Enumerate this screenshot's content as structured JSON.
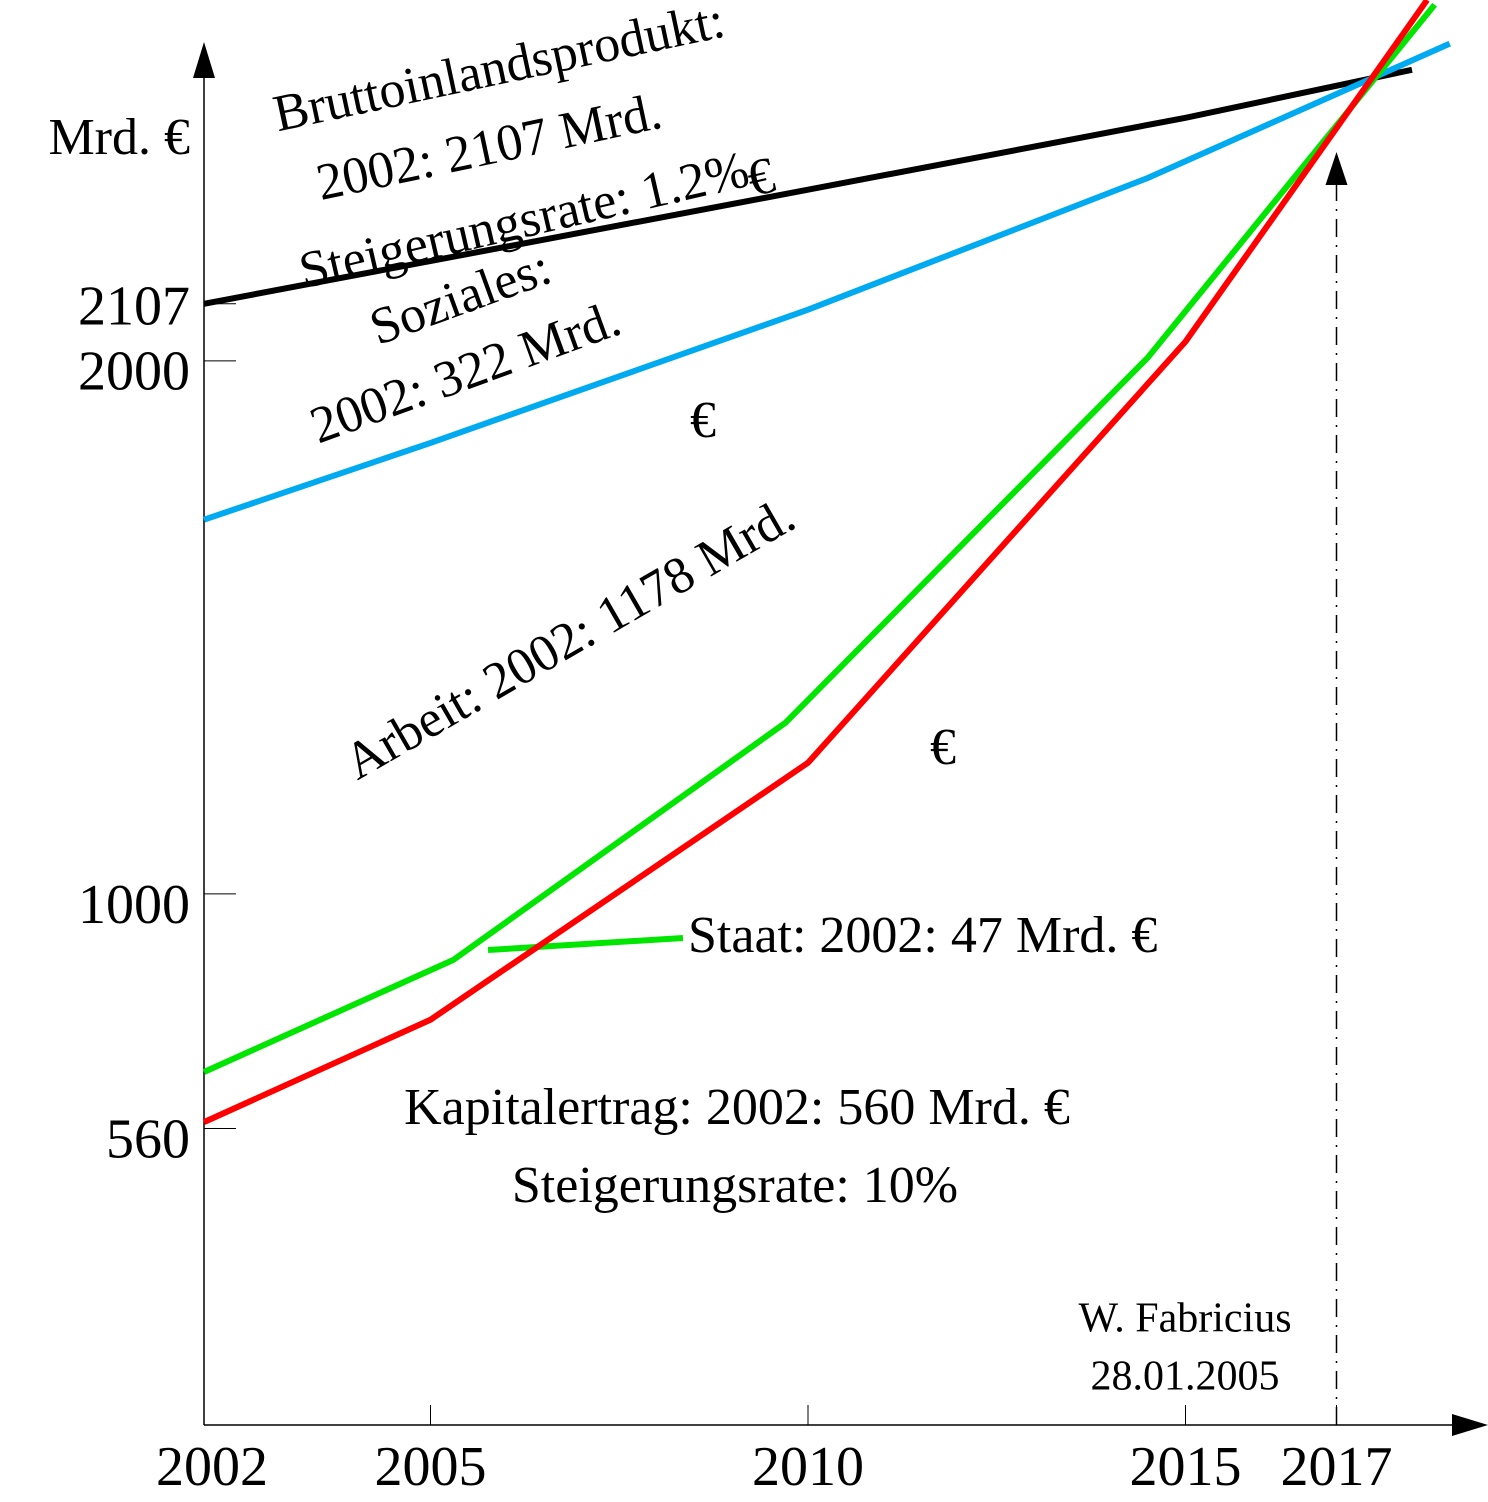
{
  "chart_data": {
    "type": "line",
    "y_label": "Mrd. €",
    "xlim": [
      2002,
      2019
    ],
    "ylim": [
      0,
      2600
    ],
    "xticks": [
      2002,
      2005,
      2010,
      2015,
      2017
    ],
    "yticks": [
      560,
      1000,
      2000,
      2107
    ],
    "series": [
      {
        "color": "#000000",
        "x": [
          2002,
          2010,
          2015,
          2018
        ],
        "values": [
          2107,
          2321,
          2456,
          2546
        ]
      },
      {
        "color": "#00aaf0",
        "x": [
          2002,
          2005,
          2010,
          2014.5,
          2018.5
        ],
        "values": [
          1702,
          1846,
          2096,
          2343,
          2595
        ]
      },
      {
        "color": "#00e600",
        "x": [
          2002,
          2005.3,
          2009.7,
          2014.5,
          2018.3
        ],
        "values": [
          666,
          876,
          1321,
          2006,
          2668
        ]
      },
      {
        "color": "#ff0000",
        "x": [
          2002,
          2005,
          2010,
          2015,
          2018.2
        ],
        "values": [
          572,
          764,
          1246,
          2036,
          2677
        ]
      }
    ],
    "annotations": [
      "Bruttoinlandsprodukt:",
      "2002: 2107 Mrd.",
      "Steigerungsrate: 1.2%",
      "€",
      "Soziales:",
      "2002: 322 Mrd.",
      "€",
      "Arbeit: 2002: 1178 Mrd.",
      "€",
      "Staat: 2002: 47 Mrd. €",
      "Kapitalertrag: 2002: 560 Mrd. €",
      "Steigerungsrate: 10%",
      "W. Fabricius",
      "28.01.2005"
    ]
  }
}
